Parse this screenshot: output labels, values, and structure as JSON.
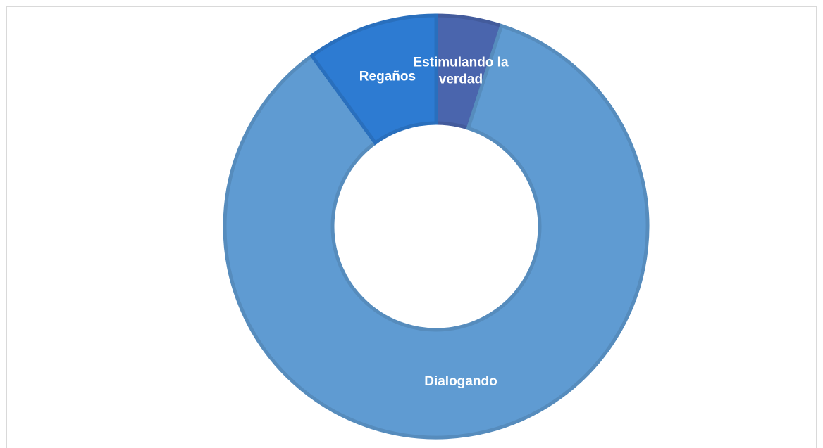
{
  "chart_data": {
    "type": "donut",
    "categories": [
      "Estimulando la verdad",
      "Dialogando",
      "Regaños"
    ],
    "values": [
      5,
      85,
      10
    ],
    "colors": [
      "#4a65ad",
      "#5f9bd2",
      "#2d7bd2"
    ]
  }
}
